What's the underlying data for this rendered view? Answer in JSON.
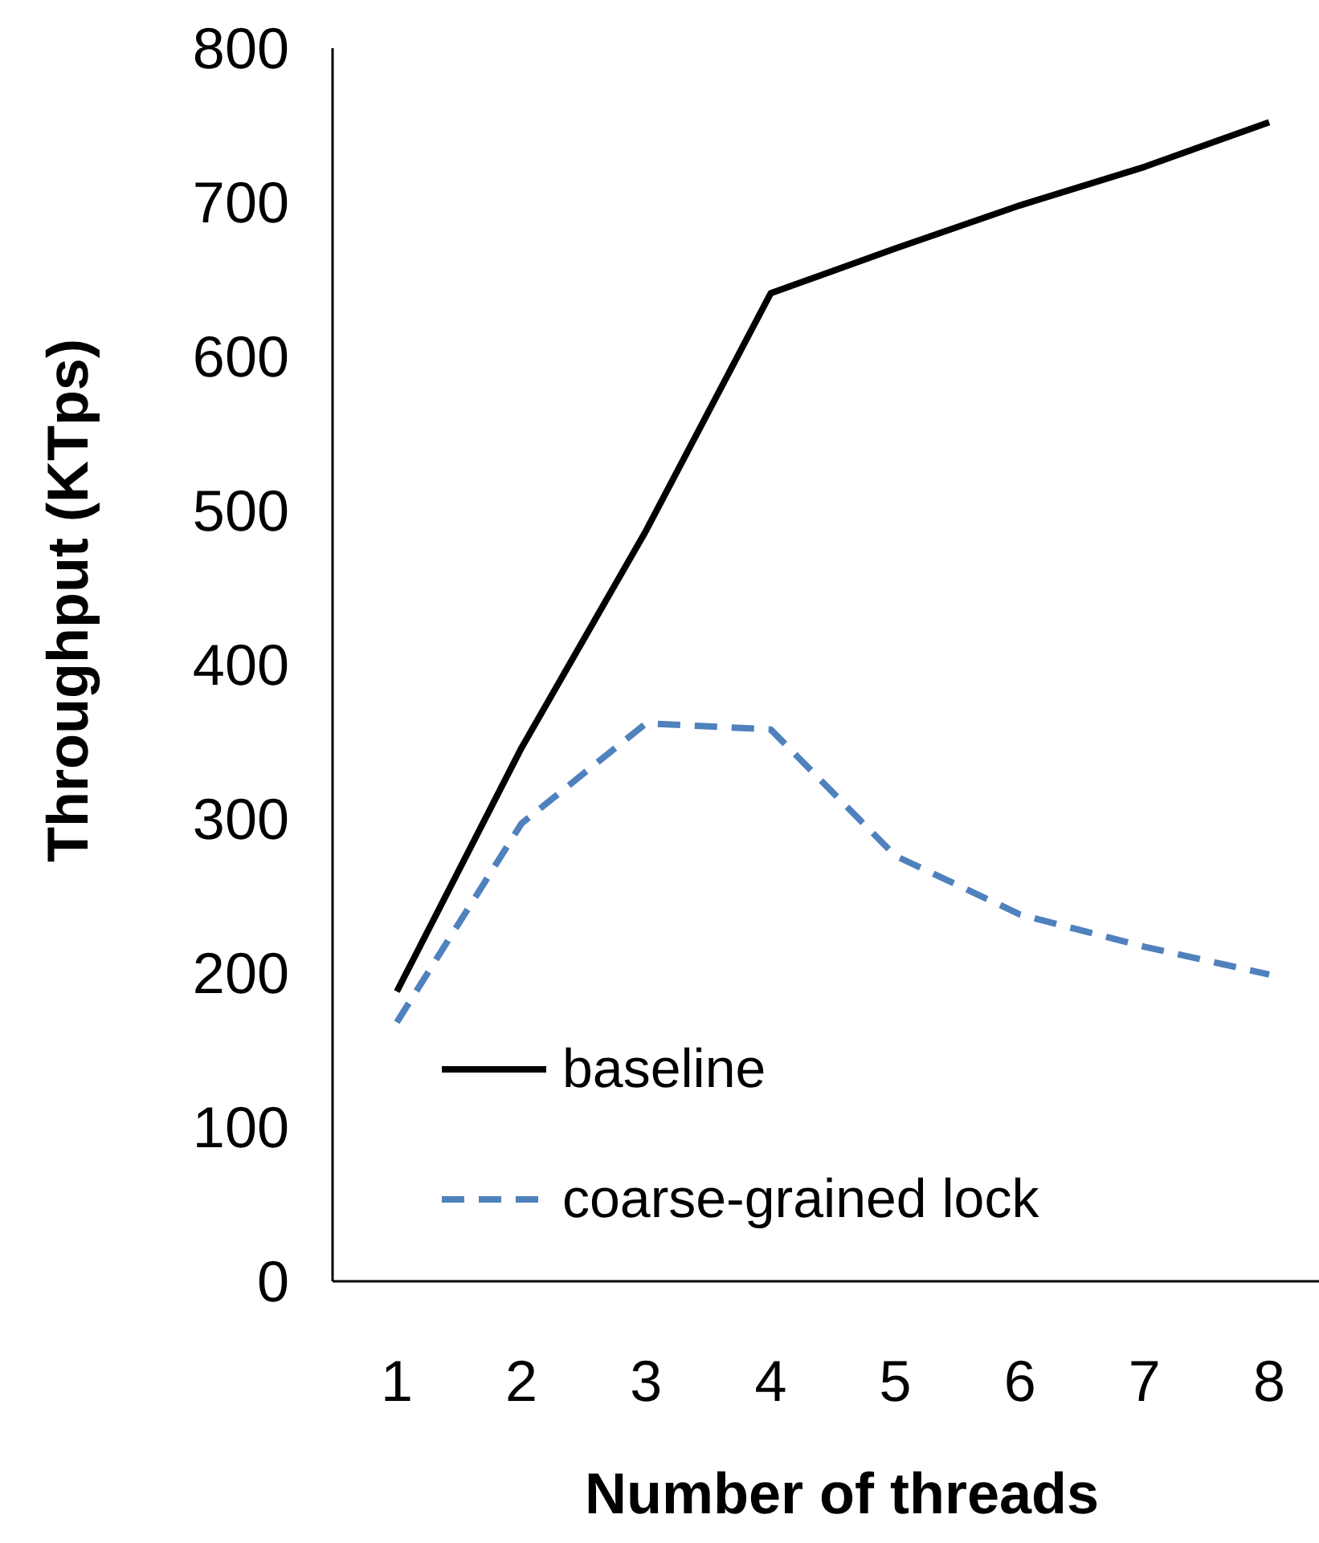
{
  "chart_data": {
    "type": "line",
    "xlabel": "Number of threads",
    "ylabel": "Throughput (KTps)",
    "categories": [
      "1",
      "2",
      "3",
      "4",
      "5",
      "6",
      "7",
      "8"
    ],
    "series": [
      {
        "name": "baseline",
        "color": "#000000",
        "line_style": "solid",
        "values": [
          188,
          346,
          487,
          641,
          670,
          698,
          723,
          752
        ]
      },
      {
        "name": "coarse-grained lock",
        "color": "#4f81bd",
        "line_style": "dashed",
        "values": [
          168,
          297,
          362,
          358,
          276,
          238,
          217,
          199
        ]
      }
    ],
    "ylim": [
      0,
      800
    ],
    "yticks": [
      0,
      100,
      200,
      300,
      400,
      500,
      600,
      700,
      800
    ],
    "grid": false,
    "legend": "bottom"
  }
}
